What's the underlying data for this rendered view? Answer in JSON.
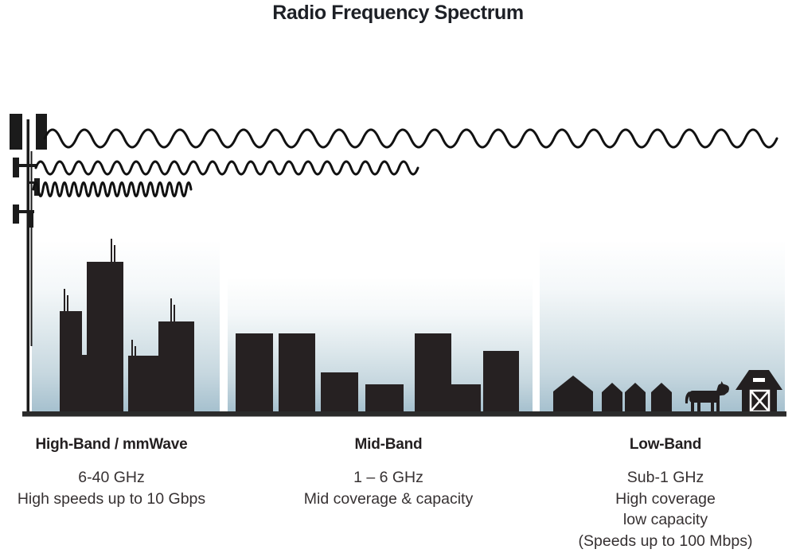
{
  "title": "Radio Frequency Spectrum",
  "bands": {
    "high": {
      "label": "High-Band / mmWave",
      "lines": [
        "6-40 GHz",
        "High speeds up to 10 Gbps"
      ]
    },
    "mid": {
      "label": "Mid-Band",
      "lines": [
        "1 – 6 GHz",
        "Mid coverage & capacity"
      ]
    },
    "low": {
      "label": "Low-Band",
      "lines": [
        "Sub-1 GHz",
        "High coverage",
        "low capacity",
        "(Speeds up to 100 Mbps)"
      ]
    }
  },
  "icons": {
    "tower": "cell-tower-icon",
    "wave_long": "low-band-long-wave",
    "wave_medium": "mid-band-medium-wave",
    "wave_short": "high-band-short-wave",
    "high_band_scene": "city-skyline-silhouette",
    "mid_band_scene": "mid-rise-buildings-silhouette",
    "low_band_scene": "rural-houses-cow-barn-silhouette"
  },
  "colors": {
    "ink": "#231f20",
    "baseline": "#2b2b2b",
    "sky_gradient_bottom": "#a5c0ce",
    "text": "#363132"
  }
}
